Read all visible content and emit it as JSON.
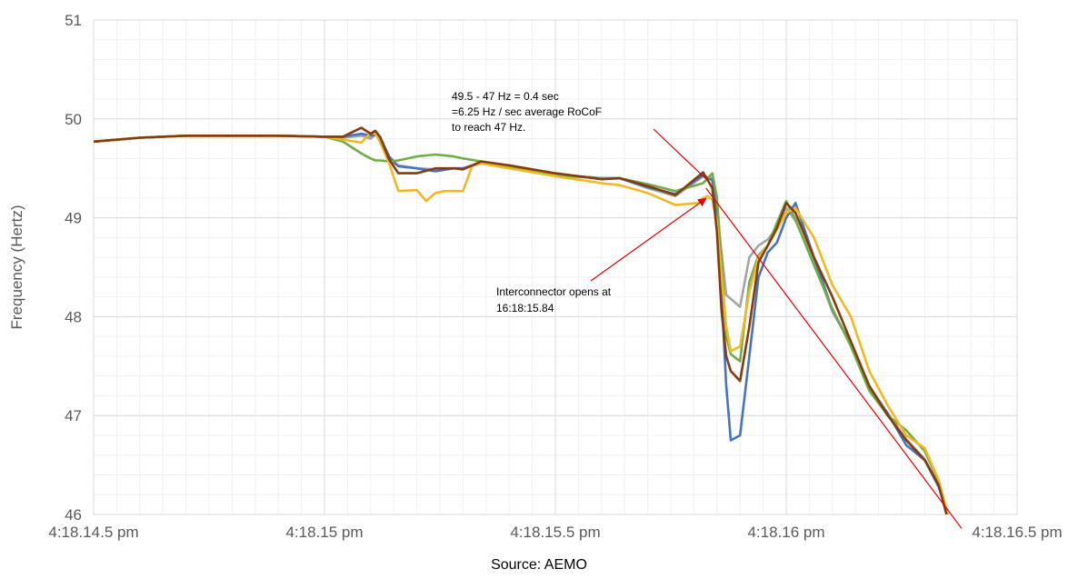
{
  "chart_data": {
    "type": "line",
    "title": "",
    "xlabel": "",
    "ylabel": "Frequency (Hertz)",
    "source": "Source: AEMO",
    "xlim": [
      14.5,
      16.5
    ],
    "ylim": [
      46,
      51
    ],
    "x_ticks": [
      {
        "value": 14.5,
        "label": "4:18.14.5 pm"
      },
      {
        "value": 15.0,
        "label": "4:18.15 pm"
      },
      {
        "value": 15.5,
        "label": "4:18.15.5 pm"
      },
      {
        "value": 16.0,
        "label": "4:18.16 pm"
      },
      {
        "value": 16.5,
        "label": "4:18.16.5 pm"
      }
    ],
    "y_ticks": [
      46,
      47,
      48,
      49,
      50,
      51
    ],
    "grid": true,
    "colors": {
      "blue": "#4472C4",
      "gray": "#A5A5A5",
      "green": "#70AD47",
      "yellow": "#F2B824",
      "brown": "#843C0C",
      "annotation": "#E00000",
      "grid": "#e3e3e3"
    },
    "series": [
      {
        "color": "#A5A5A5",
        "x": [
          14.5,
          14.6,
          14.7,
          14.8,
          14.9,
          15.0,
          15.04,
          15.08,
          15.1,
          15.11,
          15.12,
          15.14,
          15.16,
          15.2,
          15.24,
          15.28,
          15.3,
          15.34,
          15.4,
          15.5,
          15.6,
          15.64,
          15.7,
          15.76,
          15.82,
          15.84,
          15.85,
          15.86,
          15.87,
          15.88,
          15.9,
          15.92,
          15.94,
          15.96,
          15.98,
          16.0,
          16.02,
          16.06,
          16.1,
          16.14,
          16.18,
          16.22,
          16.26,
          16.3,
          16.33,
          16.35,
          16.36
        ],
        "y": [
          49.77,
          49.81,
          49.83,
          49.83,
          49.83,
          49.82,
          49.81,
          49.83,
          49.8,
          49.84,
          49.82,
          49.57,
          49.53,
          49.5,
          49.49,
          49.5,
          49.5,
          49.55,
          49.52,
          49.43,
          49.4,
          49.4,
          49.3,
          49.22,
          49.42,
          49.4,
          49.05,
          48.65,
          48.22,
          48.18,
          48.1,
          48.6,
          48.72,
          48.78,
          48.9,
          49.1,
          48.97,
          48.55,
          48.05,
          47.72,
          47.3,
          47.02,
          46.76,
          46.56,
          46.3,
          46.0,
          45.9
        ]
      },
      {
        "color": "#4472C4",
        "x": [
          14.5,
          14.6,
          14.7,
          14.8,
          14.9,
          15.0,
          15.04,
          15.08,
          15.1,
          15.11,
          15.12,
          15.14,
          15.16,
          15.2,
          15.24,
          15.28,
          15.3,
          15.34,
          15.4,
          15.5,
          15.6,
          15.64,
          15.7,
          15.76,
          15.82,
          15.84,
          15.85,
          15.86,
          15.87,
          15.88,
          15.9,
          15.92,
          15.94,
          15.96,
          15.98,
          16.0,
          16.02,
          16.06,
          16.1,
          16.14,
          16.18,
          16.22,
          16.26,
          16.3,
          16.33,
          16.35,
          16.36
        ],
        "y": [
          49.77,
          49.81,
          49.83,
          49.83,
          49.83,
          49.82,
          49.82,
          49.85,
          49.83,
          49.84,
          49.82,
          49.62,
          49.52,
          49.5,
          49.47,
          49.5,
          49.5,
          49.56,
          49.52,
          49.44,
          49.4,
          49.4,
          49.31,
          49.24,
          49.43,
          49.38,
          49.0,
          48.2,
          47.3,
          46.75,
          46.8,
          47.6,
          48.4,
          48.65,
          48.75,
          49.0,
          49.15,
          48.6,
          48.07,
          47.72,
          47.28,
          47.02,
          46.7,
          46.55,
          46.28,
          46.0,
          45.9
        ]
      },
      {
        "color": "#70AD47",
        "x": [
          14.5,
          14.6,
          14.7,
          14.8,
          14.9,
          15.0,
          15.04,
          15.08,
          15.1,
          15.11,
          15.12,
          15.14,
          15.16,
          15.2,
          15.24,
          15.28,
          15.3,
          15.34,
          15.4,
          15.5,
          15.6,
          15.64,
          15.7,
          15.76,
          15.82,
          15.84,
          15.85,
          15.86,
          15.87,
          15.88,
          15.9,
          15.92,
          15.94,
          15.96,
          15.98,
          16.0,
          16.02,
          16.06,
          16.1,
          16.14,
          16.18,
          16.22,
          16.26,
          16.3,
          16.33,
          16.35,
          16.36
        ],
        "y": [
          49.77,
          49.81,
          49.83,
          49.83,
          49.83,
          49.82,
          49.77,
          49.65,
          49.6,
          49.58,
          49.58,
          49.57,
          49.58,
          49.62,
          49.64,
          49.62,
          49.6,
          49.57,
          49.52,
          49.43,
          49.4,
          49.4,
          49.34,
          49.27,
          49.35,
          49.45,
          49.2,
          48.55,
          47.8,
          47.62,
          47.55,
          48.35,
          48.62,
          48.72,
          48.95,
          49.17,
          48.98,
          48.52,
          48.08,
          47.7,
          47.25,
          47.0,
          46.85,
          46.64,
          46.34,
          46.0,
          45.9
        ]
      },
      {
        "color": "#F2B824",
        "x": [
          14.5,
          14.6,
          14.7,
          14.8,
          14.9,
          15.0,
          15.04,
          15.08,
          15.1,
          15.11,
          15.12,
          15.14,
          15.16,
          15.2,
          15.22,
          15.24,
          15.26,
          15.3,
          15.32,
          15.34,
          15.4,
          15.5,
          15.6,
          15.64,
          15.7,
          15.76,
          15.81,
          15.82,
          15.83,
          15.84,
          15.85,
          15.86,
          15.87,
          15.88,
          15.9,
          15.92,
          15.94,
          15.96,
          15.98,
          16.0,
          16.02,
          16.06,
          16.1,
          16.14,
          16.18,
          16.22,
          16.26,
          16.3,
          16.33,
          16.35,
          16.36
        ],
        "y": [
          49.77,
          49.81,
          49.83,
          49.83,
          49.83,
          49.82,
          49.79,
          49.76,
          49.86,
          49.85,
          49.77,
          49.55,
          49.27,
          49.28,
          49.17,
          49.25,
          49.27,
          49.27,
          49.53,
          49.55,
          49.5,
          49.42,
          49.35,
          49.33,
          49.25,
          49.13,
          49.15,
          49.2,
          49.22,
          49.18,
          48.95,
          48.4,
          47.9,
          47.65,
          47.7,
          48.25,
          48.6,
          48.72,
          48.88,
          49.05,
          49.1,
          48.8,
          48.32,
          48.0,
          47.45,
          47.1,
          46.8,
          46.67,
          46.35,
          46.0,
          45.9
        ]
      },
      {
        "color": "#843C0C",
        "x": [
          14.5,
          14.6,
          14.7,
          14.8,
          14.9,
          15.0,
          15.04,
          15.08,
          15.1,
          15.11,
          15.12,
          15.14,
          15.16,
          15.2,
          15.24,
          15.28,
          15.3,
          15.34,
          15.4,
          15.5,
          15.6,
          15.64,
          15.7,
          15.76,
          15.82,
          15.84,
          15.85,
          15.86,
          15.87,
          15.88,
          15.9,
          15.92,
          15.94,
          15.96,
          15.98,
          16.0,
          16.02,
          16.06,
          16.1,
          16.14,
          16.18,
          16.22,
          16.26,
          16.3,
          16.33,
          16.35,
          16.36
        ],
        "y": [
          49.77,
          49.81,
          49.83,
          49.83,
          49.83,
          49.82,
          49.82,
          49.91,
          49.85,
          49.88,
          49.82,
          49.59,
          49.45,
          49.45,
          49.5,
          49.5,
          49.49,
          49.57,
          49.53,
          49.45,
          49.39,
          49.4,
          49.32,
          49.23,
          49.46,
          49.3,
          48.85,
          48.05,
          47.6,
          47.45,
          47.35,
          47.9,
          48.55,
          48.72,
          48.9,
          49.15,
          49.05,
          48.6,
          48.2,
          47.75,
          47.3,
          47.0,
          46.75,
          46.55,
          46.3,
          45.95,
          45.85
        ]
      }
    ],
    "annotations": [
      {
        "lines": [
          "49.5 - 47 Hz = 0.4 sec",
          "=6.25 Hz / sec average RoCoF",
          "to reach 47 Hz."
        ]
      },
      {
        "lines": [
          "Interconnector opens at",
          "16:18:15.84"
        ]
      }
    ],
    "rocof_line": {
      "x": [
        15.84,
        16.38
      ],
      "y": [
        49.3,
        45.95
      ]
    },
    "arrow_to": {
      "x": 15.83,
      "y": 49.25
    }
  }
}
